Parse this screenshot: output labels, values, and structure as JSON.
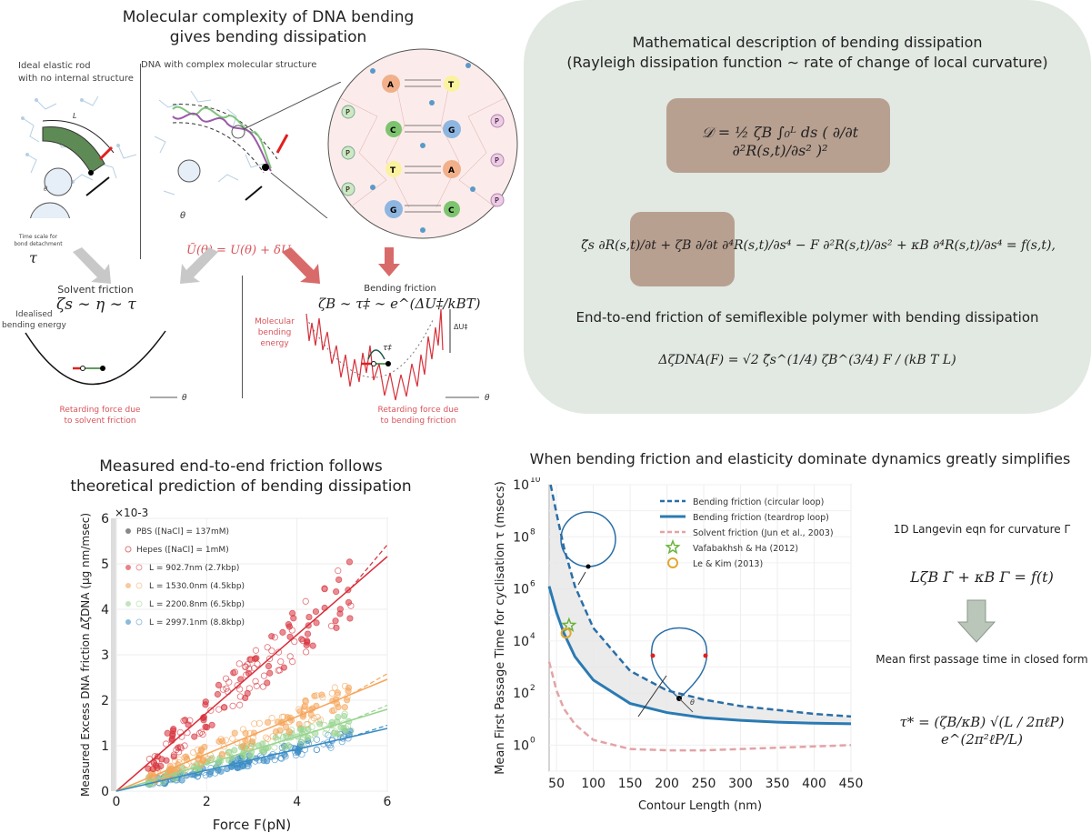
{
  "top_left": {
    "title_line1": "Molecular complexity of DNA bending",
    "title_line2": "gives bending dissipation",
    "ideal_rod_label_1": "Ideal elastic rod",
    "ideal_rod_label_2": "with no internal structure",
    "dna_label": "DNA with complex molecular structure",
    "bond_label_1": "Time scale for",
    "bond_label_2": "bond detachment",
    "tau_symbol": "τ",
    "theta_symbol": "θ",
    "length_symbol": "L",
    "bases": [
      "A",
      "T",
      "C",
      "G",
      "T",
      "A",
      "G",
      "C"
    ],
    "phosphate_label": "P",
    "potential_eq": "Ũ(θ) = U(θ) + δU",
    "solvent_friction_title": "Solvent friction",
    "solvent_friction_eq": "ζs ∼ η ∼ τ",
    "idealised_label_1": "Idealised",
    "idealised_label_2": "bending energy",
    "retarding_solvent_1": "Retarding force due",
    "retarding_solvent_2": "to solvent friction",
    "bending_friction_title": "Bending friction",
    "bending_friction_eq": "ζB ∼ τ‡ ∼ e^(ΔU‡/kBT)",
    "molecular_label_1": "Molecular bending",
    "molecular_label_2": "energy",
    "delta_u_label": "ΔU‡",
    "tau_dagger": "τ‡",
    "retarding_bending_1": "Retarding force due",
    "retarding_bending_2": "to bending friction"
  },
  "top_right": {
    "title_line1": "Mathematical description of bending dissipation",
    "title_line2": "(Rayleigh dissipation function ∼ rate of change of local curvature)",
    "rayleigh_eq": "𝒟 = ½ ζB ∫₀ᴸ ds ( ∂/∂t ∂²R(s,t)/∂s² )²",
    "langevin_eq": "ζ̃s ∂R(s,t)/∂t + ζB ∂/∂t ∂⁴R(s,t)/∂s⁴ − F ∂²R(s,t)/∂s² + κB ∂⁴R(s,t)/∂s⁴ = f(s,t),",
    "end_to_end_title": "End-to-end friction of semiflexible polymer with bending dissipation",
    "end_to_end_eq": "ΔζDNA(F) = √2 ζ̃s^(1/4) ζB^(3/4) F / (kB T L)",
    "colors": {
      "panel": "#e2e8e2",
      "highlight": "#b8a091"
    }
  },
  "bottom_left": {
    "title_line1": "Measured end-to-end friction follows",
    "title_line2": "theoretical prediction of bending dissipation"
  },
  "bottom_right": {
    "title": "When bending friction and elasticity dominate dynamics greatly simplifies",
    "langevin_title": "1D Langevin eqn for curvature Γ",
    "langevin_eq": "LζB Γ̇ + κB Γ = f(t)",
    "mfpt_title": "Mean first passage time in closed form",
    "mfpt_eq": "τ* = (ζB/κB) √(L / 2πℓP) e^(2π²ℓP/L)",
    "theta_symbol": "θ",
    "arrow_color": "#b9c6b9"
  },
  "chart_data": [
    {
      "type": "scatter",
      "title": "Measured end-to-end friction follows theoretical prediction of bending dissipation",
      "xlabel": "Force F(pN)",
      "ylabel": "Measured Excess DNA friction ΔζDNA (μg nm/msec)",
      "y_multiplier": "×10^-3",
      "xlim": [
        0,
        6
      ],
      "ylim": [
        0,
        6
      ],
      "xticks": [
        "0",
        "2",
        "4",
        "6"
      ],
      "yticks": [
        "0",
        "1",
        "2",
        "3",
        "4",
        "5",
        "6"
      ],
      "grid": true,
      "legend_position": "top-left",
      "legend": [
        {
          "label": "PBS ([NaCl] = 137mM)",
          "marker": "filled-circle"
        },
        {
          "label": "Hepes ([NaCl] = 1mM)",
          "marker": "open-circle"
        },
        {
          "label": "L = 902.7nm (2.7kbp)",
          "color": "#d7303a"
        },
        {
          "label": "L = 1530.0nm (4.5kbp)",
          "color": "#f5a55a"
        },
        {
          "label": "L = 2200.8nm (6.5kbp)",
          "color": "#98d48f"
        },
        {
          "label": "L = 2997.1nm (8.8kbp)",
          "color": "#3a8cc4"
        }
      ],
      "series": [
        {
          "name": "L = 902.7nm (2.7kbp)",
          "color": "#d7303a",
          "fit_slope": 0.86,
          "x_range": [
            0.7,
            5.2
          ],
          "spread": 0.45
        },
        {
          "name": "L = 1530.0nm (4.5kbp)",
          "color": "#f5a55a",
          "fit_slope": 0.41,
          "x_range": [
            0.7,
            5.2
          ],
          "spread": 0.22
        },
        {
          "name": "L = 2200.8nm (6.5kbp)",
          "color": "#98d48f",
          "fit_slope": 0.3,
          "x_range": [
            0.7,
            5.2
          ],
          "spread": 0.15
        },
        {
          "name": "L = 2997.1nm (8.8kbp)",
          "color": "#3a8cc4",
          "fit_slope": 0.23,
          "x_range": [
            0.7,
            5.2
          ],
          "spread": 0.12
        }
      ]
    },
    {
      "type": "line",
      "title": "When bending friction and elasticity dominate dynamics greatly simplifies",
      "xlabel": "Contour Length (nm)",
      "ylabel": "Mean First Passage Time for cyclisation τ (msecs)",
      "xlim": [
        40,
        450
      ],
      "ylim_log10": [
        -1,
        10
      ],
      "yscale": "log",
      "xticks": [
        "50",
        "100",
        "150",
        "200",
        "250",
        "300",
        "350",
        "400",
        "450"
      ],
      "yticks": [
        "10^0",
        "10^2",
        "10^4",
        "10^6",
        "10^8",
        "10^10"
      ],
      "grid": true,
      "legend_position": "top-right",
      "series": [
        {
          "name": "Bending friction (circular loop)",
          "style": "dashed",
          "color": "#2a6ea6",
          "x": [
            42,
            50,
            60,
            75,
            100,
            150,
            200,
            250,
            300,
            350,
            400,
            450
          ],
          "log10_y": [
            10,
            8.9,
            7.6,
            6.1,
            4.5,
            2.85,
            2.1,
            1.75,
            1.5,
            1.35,
            1.2,
            1.1
          ]
        },
        {
          "name": "Bending friction (teardrop loop)",
          "style": "solid",
          "color": "#2a7ab3",
          "x": [
            40,
            50,
            60,
            75,
            100,
            150,
            200,
            250,
            300,
            350,
            400,
            450
          ],
          "log10_y": [
            6.1,
            5.1,
            4.3,
            3.4,
            2.5,
            1.6,
            1.25,
            1.05,
            0.95,
            0.88,
            0.84,
            0.82
          ]
        },
        {
          "name": "Solvent friction (Jun et al., 2003)",
          "style": "dashed",
          "color": "#e3a3a6",
          "x": [
            40,
            50,
            60,
            75,
            100,
            150,
            200,
            250,
            300,
            350,
            400,
            450
          ],
          "log10_y": [
            3.2,
            2.1,
            1.4,
            0.8,
            0.2,
            -0.15,
            -0.2,
            -0.2,
            -0.15,
            -0.1,
            -0.05,
            0.0
          ]
        },
        {
          "name": "Vafabakhsh & Ha (2012)",
          "marker": "star",
          "color": "#6bb33a",
          "x": [
            67
          ],
          "log10_y": [
            4.6
          ]
        },
        {
          "name": "Le & Kim (2013)",
          "marker": "open-circle",
          "color": "#e0a830",
          "x": [
            63
          ],
          "log10_y": [
            4.3
          ]
        }
      ]
    }
  ]
}
